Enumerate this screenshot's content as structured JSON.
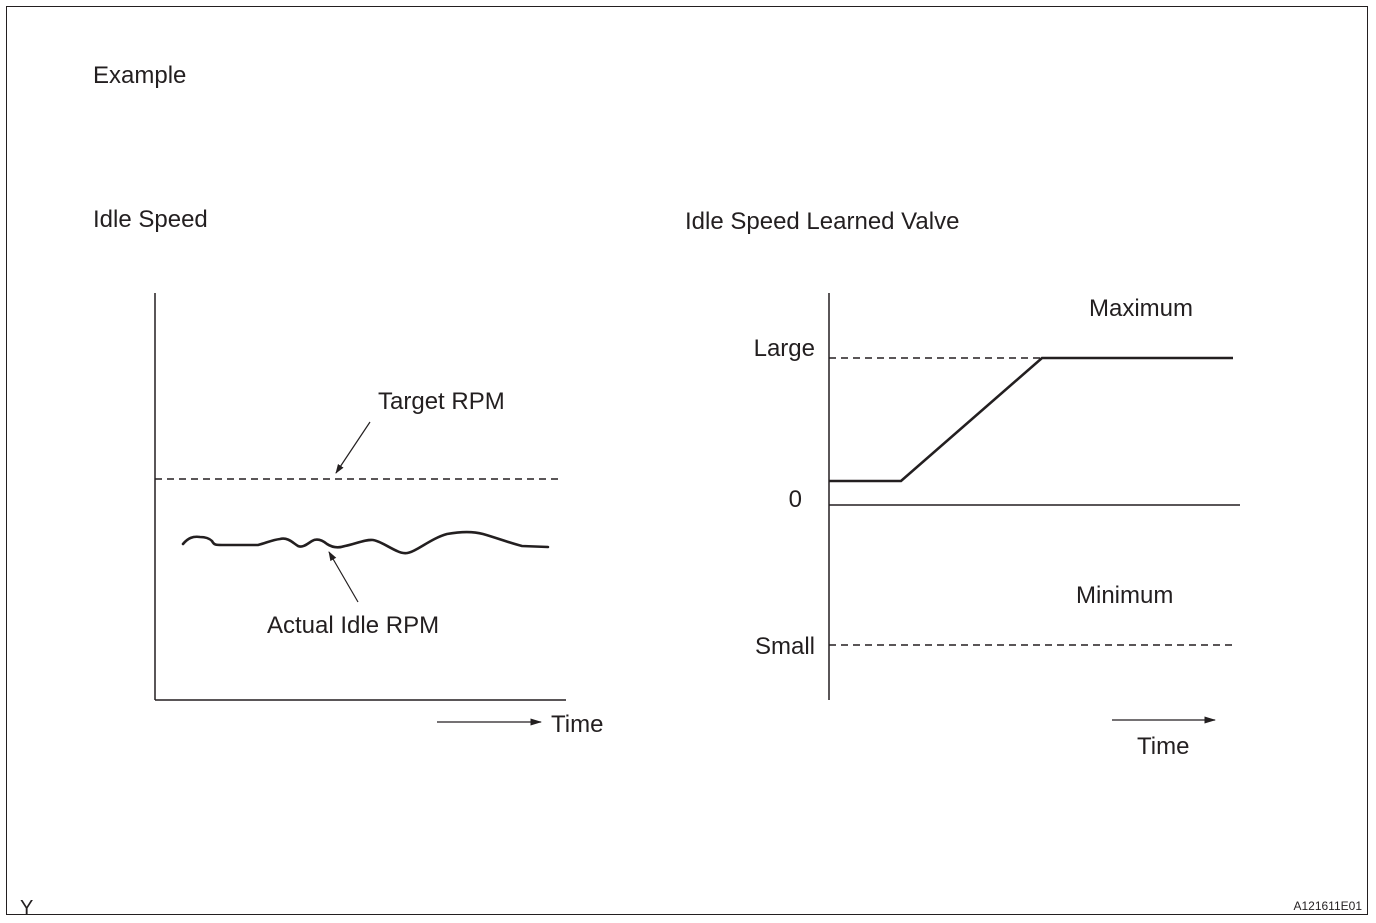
{
  "header": {
    "example": "Example"
  },
  "left_chart": {
    "title": "Idle Speed",
    "target_label": "Target RPM",
    "actual_label": "Actual Idle RPM",
    "time_label": "Time"
  },
  "right_chart": {
    "title": "Idle Speed Learned Valve",
    "large_label": "Large",
    "zero_label": "0",
    "small_label": "Small",
    "maximum_label": "Maximum",
    "minimum_label": "Minimum",
    "time_label": "Time"
  },
  "footer": {
    "corner_letter": "Y",
    "figure_code": "A121611E01"
  }
}
